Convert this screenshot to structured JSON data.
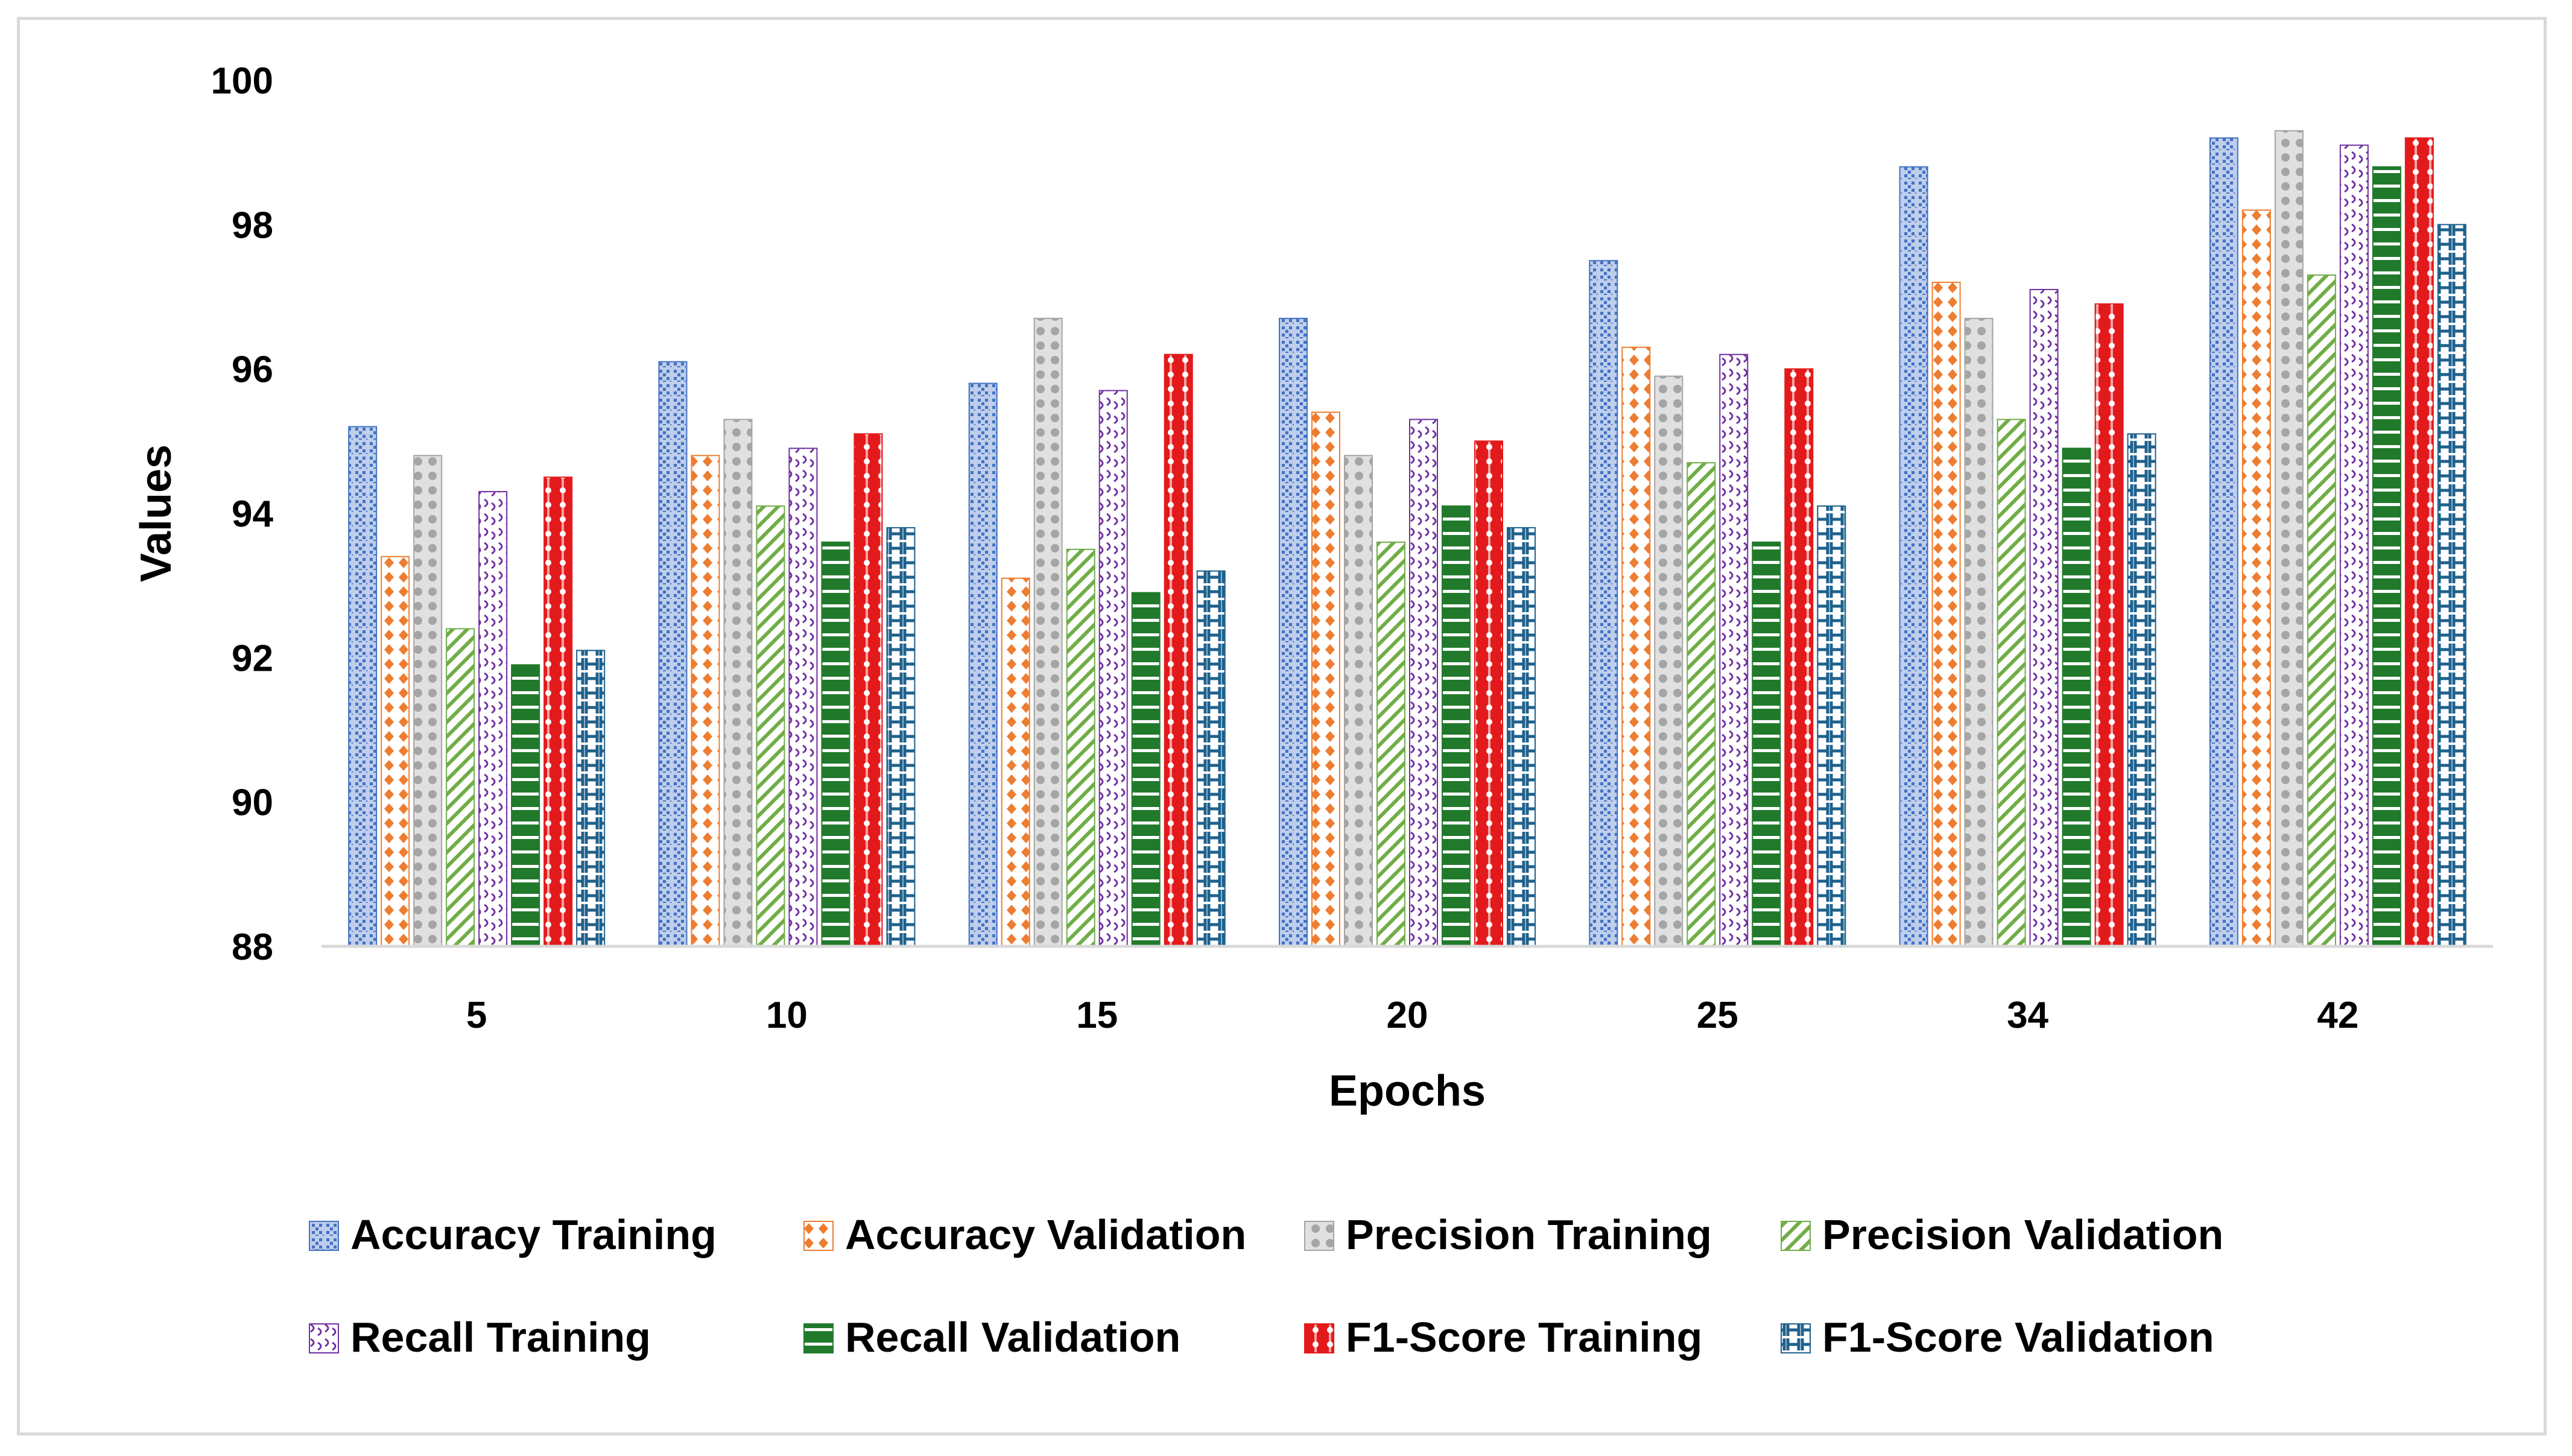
{
  "chart_data": {
    "type": "bar",
    "title": "",
    "xlabel": "Epochs",
    "ylabel": "Values",
    "categories": [
      "5",
      "10",
      "15",
      "20",
      "25",
      "34",
      "42"
    ],
    "ylim": [
      88,
      100
    ],
    "yticks": [
      88,
      90,
      92,
      94,
      96,
      98,
      100
    ],
    "grid": false,
    "legend_position": "bottom",
    "series": [
      {
        "name": "Accuracy Training",
        "color": "#4472c4",
        "pattern": "dotgrid",
        "values": [
          95.2,
          96.1,
          95.8,
          96.7,
          97.5,
          98.8,
          99.2
        ]
      },
      {
        "name": "Accuracy Validation",
        "color": "#ed7d31",
        "pattern": "diamonds",
        "values": [
          93.4,
          94.8,
          93.1,
          95.4,
          96.3,
          97.2,
          98.2
        ]
      },
      {
        "name": "Precision Training",
        "color": "#a5a5a5",
        "pattern": "circles",
        "values": [
          94.8,
          95.3,
          96.7,
          94.8,
          95.9,
          96.7,
          99.3
        ]
      },
      {
        "name": "Precision Validation",
        "color": "#70ad47",
        "pattern": "diag",
        "values": [
          92.4,
          94.1,
          93.5,
          93.6,
          94.7,
          95.3,
          97.3
        ]
      },
      {
        "name": "Recall Training",
        "color": "#7030a0",
        "pattern": "wave",
        "values": [
          94.3,
          94.9,
          95.7,
          95.3,
          96.2,
          97.1,
          99.1
        ]
      },
      {
        "name": "Recall Validation",
        "color": "#217a2c",
        "pattern": "hlines",
        "values": [
          91.9,
          93.6,
          92.9,
          94.1,
          93.6,
          94.9,
          98.8
        ]
      },
      {
        "name": "F1-Score Training",
        "color": "#e31a1c",
        "pattern": "cross",
        "values": [
          94.5,
          95.1,
          96.2,
          95.0,
          96.0,
          96.9,
          99.2
        ]
      },
      {
        "name": "F1-Score Validation",
        "color": "#1f618d",
        "pattern": "brackets",
        "values": [
          92.1,
          93.8,
          93.2,
          93.8,
          94.1,
          95.1,
          98.0
        ]
      }
    ]
  }
}
